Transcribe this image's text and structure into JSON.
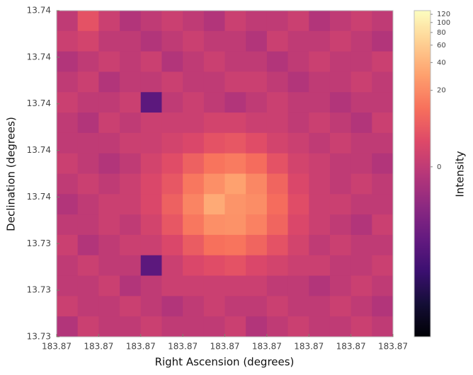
{
  "chart_data": {
    "type": "heatmap",
    "xlabel": "Right Ascension (degrees)",
    "ylabel": "Declination (degrees)",
    "colorbar_label": "Intensity",
    "xlim": [
      183.869,
      183.871
    ],
    "xticks": [
      {
        "value": 183.869,
        "label": "183.87"
      },
      {
        "value": 183.86925,
        "label": "183.87"
      },
      {
        "value": 183.8695,
        "label": "183.87"
      },
      {
        "value": 183.86975,
        "label": "183.87"
      },
      {
        "value": 183.87,
        "label": "183.87"
      },
      {
        "value": 183.87025,
        "label": "183.87"
      },
      {
        "value": 183.8705,
        "label": "183.87"
      },
      {
        "value": 183.87075,
        "label": "183.87"
      },
      {
        "value": 183.871,
        "label": "183.87"
      }
    ],
    "ylim": [
      13.7344,
      13.7358
    ],
    "yticks": [
      {
        "value": 13.7344,
        "label": "13.73"
      },
      {
        "value": 13.7346,
        "label": "13.73"
      },
      {
        "value": 13.7348,
        "label": "13.73"
      },
      {
        "value": 13.735,
        "label": "13.74"
      },
      {
        "value": 13.7352,
        "label": "13.74"
      },
      {
        "value": 13.7354,
        "label": "13.74"
      },
      {
        "value": 13.7356,
        "label": "13.74"
      },
      {
        "value": 13.7358,
        "label": "13.74"
      }
    ],
    "colormap": "magma",
    "stretch": "log",
    "stretch_a": 1000,
    "clim": [
      -4.8,
      130
    ],
    "cticks": [
      0,
      20,
      40,
      60,
      80,
      100,
      120
    ],
    "z": [
      [
        0,
        5,
        1,
        -1,
        0,
        1,
        0,
        -1,
        1,
        0,
        0,
        1,
        -1,
        0,
        1,
        0
      ],
      [
        1,
        2,
        0,
        0,
        -1,
        0,
        1,
        0,
        0,
        -1,
        1,
        0,
        0,
        1,
        0,
        -1
      ],
      [
        -1,
        0,
        1,
        0,
        1,
        -1,
        0,
        1,
        0,
        0,
        -1,
        0,
        1,
        0,
        0,
        1
      ],
      [
        0,
        1,
        -1,
        0,
        0,
        1,
        0,
        0,
        1,
        1,
        0,
        -1,
        0,
        0,
        1,
        0
      ],
      [
        1,
        0,
        0,
        1,
        -4,
        0,
        1,
        0,
        -1,
        0,
        1,
        0,
        0,
        -1,
        0,
        0
      ],
      [
        0,
        -1,
        1,
        0,
        1,
        1,
        1,
        2,
        2,
        1,
        1,
        0,
        1,
        0,
        -1,
        1
      ],
      [
        0,
        0,
        0,
        1,
        1,
        2,
        3,
        5,
        6,
        4,
        2,
        1,
        0,
        1,
        0,
        0
      ],
      [
        1,
        0,
        -1,
        0,
        2,
        4,
        8,
        13,
        15,
        11,
        5,
        2,
        1,
        0,
        0,
        -1
      ],
      [
        0,
        1,
        0,
        1,
        3,
        6,
        14,
        22,
        30,
        19,
        9,
        3,
        1,
        0,
        1,
        0
      ],
      [
        -1,
        0,
        1,
        1,
        3,
        8,
        18,
        35,
        24,
        21,
        11,
        4,
        1,
        1,
        0,
        0
      ],
      [
        0,
        0,
        1,
        0,
        2,
        6,
        14,
        22,
        23,
        17,
        9,
        3,
        1,
        0,
        -1,
        1
      ],
      [
        1,
        -1,
        0,
        1,
        1,
        3,
        7,
        12,
        13,
        9,
        5,
        2,
        0,
        1,
        0,
        0
      ],
      [
        0,
        1,
        0,
        0,
        -4,
        1,
        3,
        4,
        5,
        3,
        2,
        1,
        1,
        0,
        0,
        1
      ],
      [
        0,
        0,
        1,
        -1,
        0,
        1,
        1,
        1,
        1,
        1,
        0,
        0,
        -1,
        0,
        1,
        0
      ],
      [
        1,
        0,
        0,
        1,
        0,
        -1,
        0,
        1,
        0,
        0,
        1,
        0,
        0,
        1,
        0,
        -1
      ],
      [
        -1,
        1,
        0,
        0,
        1,
        0,
        0,
        0,
        1,
        -1,
        0,
        1,
        0,
        0,
        1,
        0
      ]
    ]
  }
}
